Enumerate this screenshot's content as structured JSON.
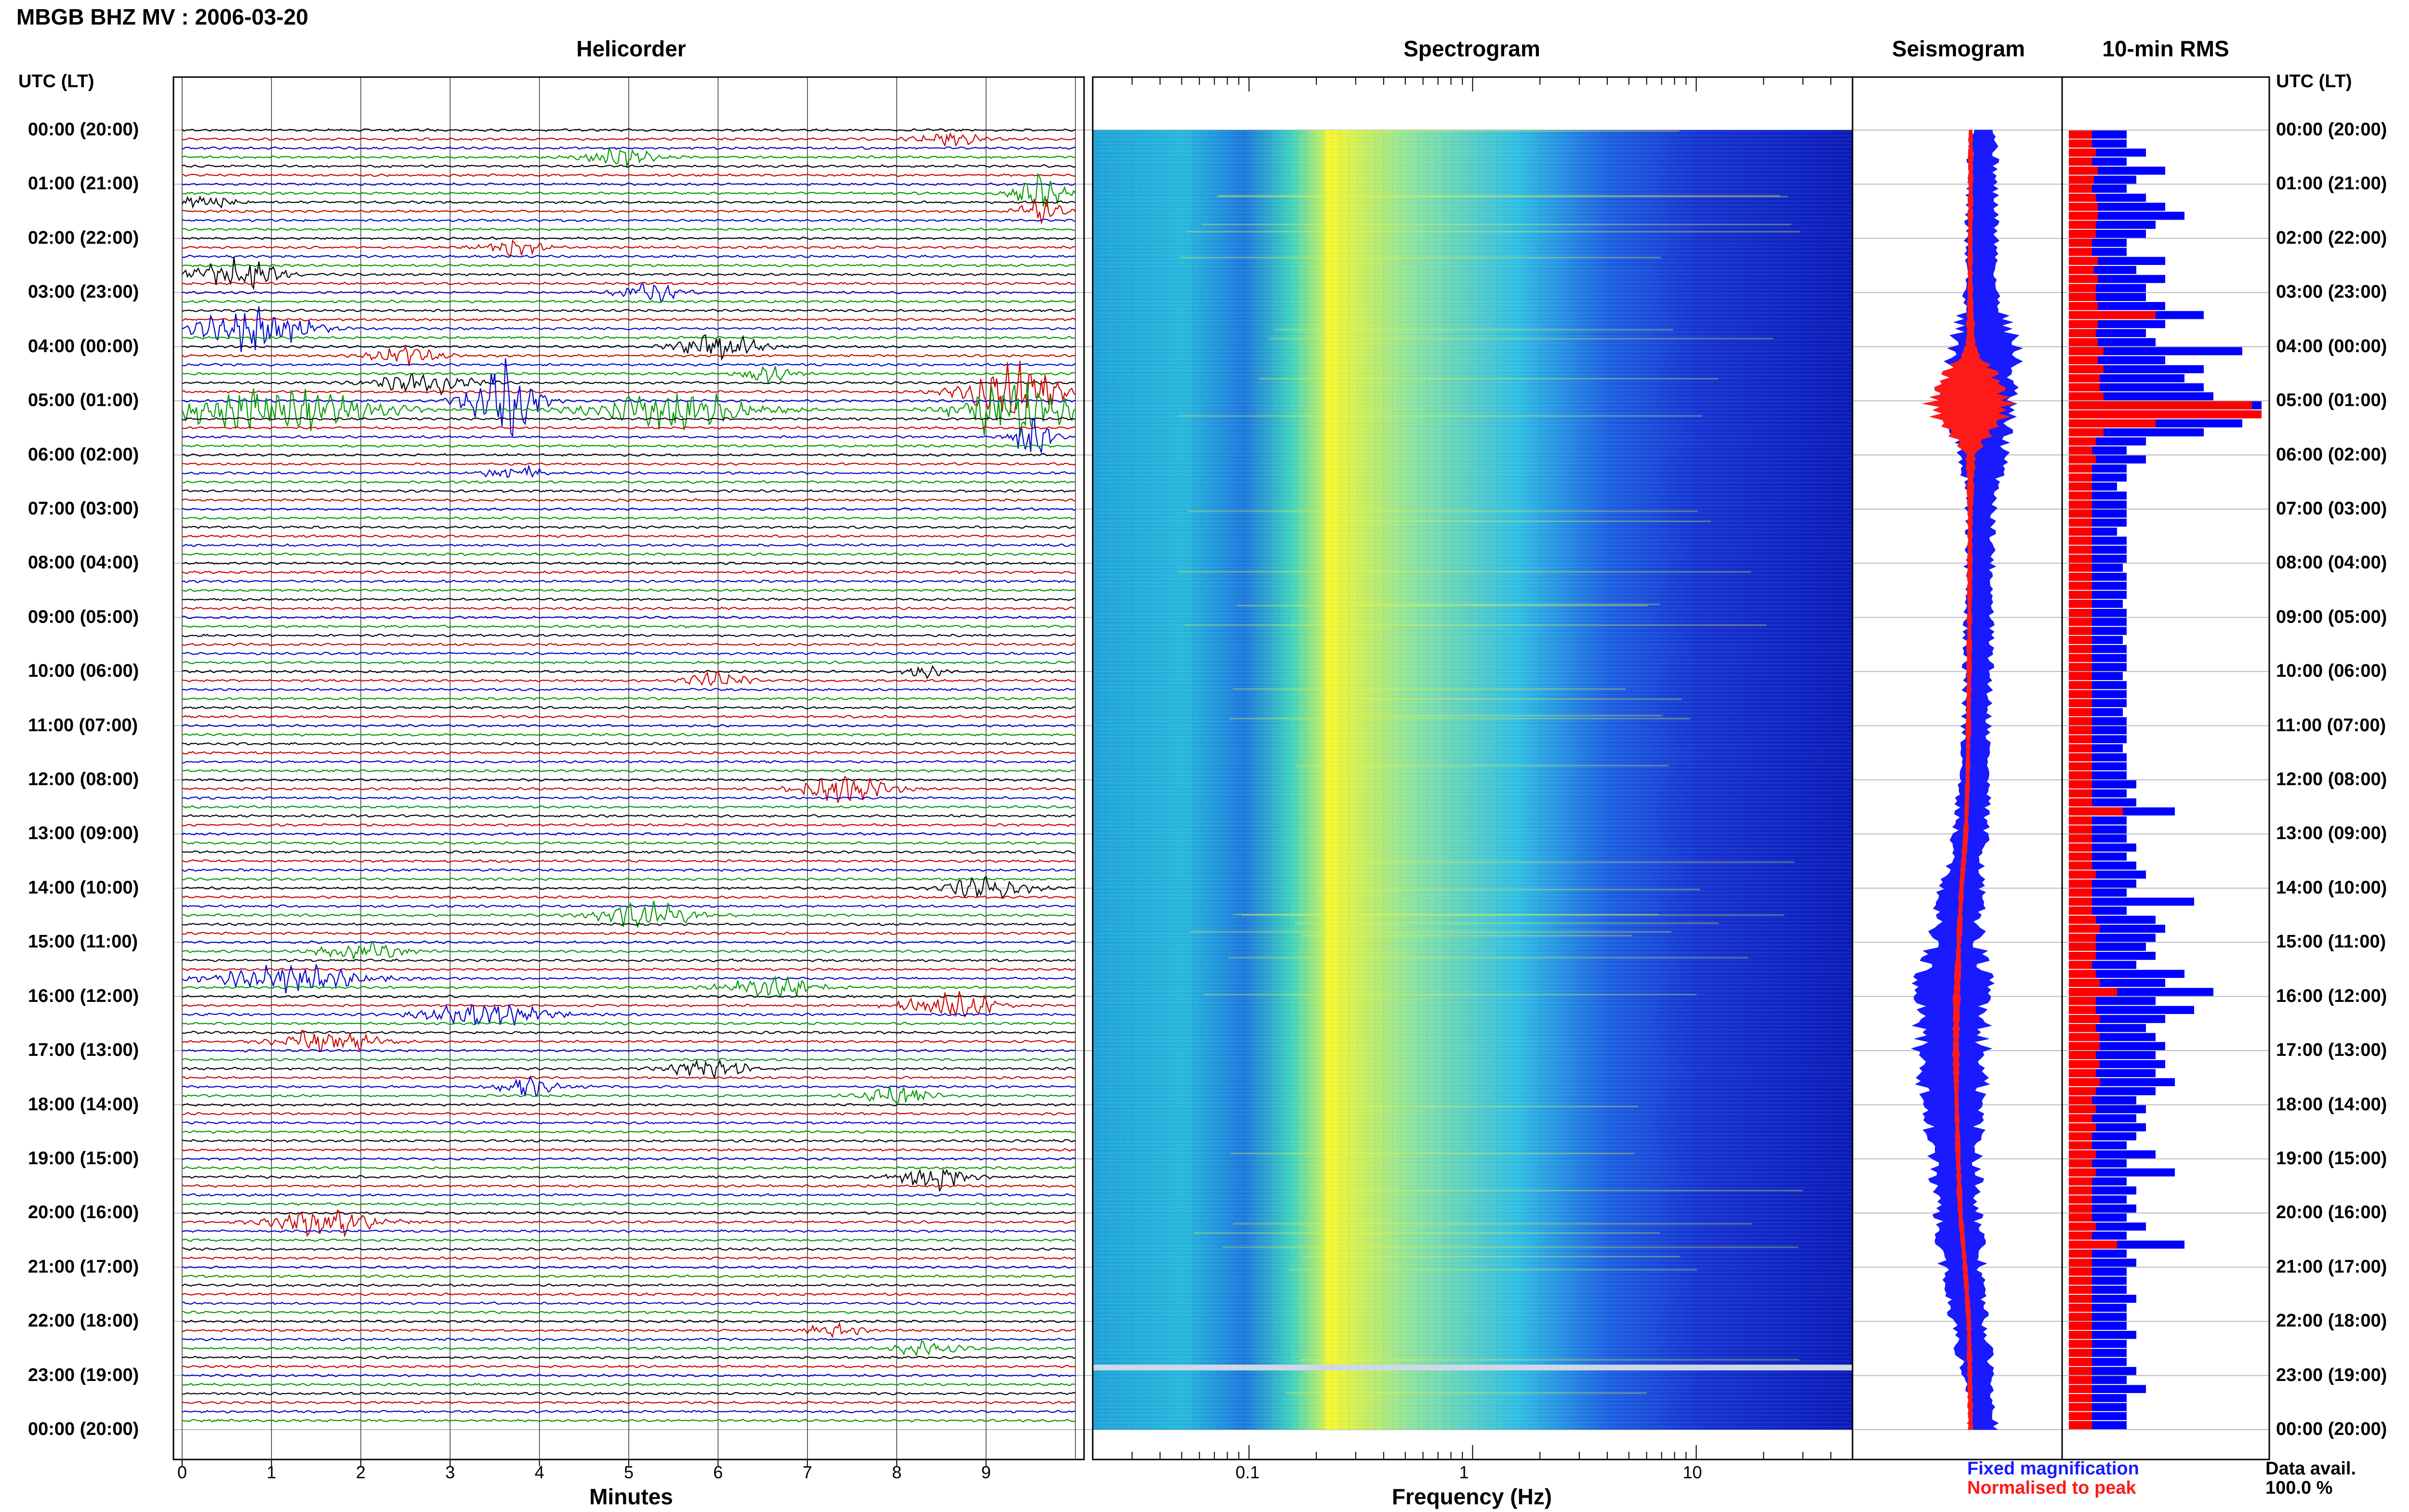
{
  "title": "MBGB BHZ MV : 2006-03-20",
  "panels": {
    "helicorder": "Helicorder",
    "spectrogram": "Spectrogram",
    "seismogram": "Seismogram",
    "rms": "10-min RMS"
  },
  "time_axis_header": "UTC (LT)",
  "time_labels": [
    "00:00 (20:00)",
    "01:00 (21:00)",
    "02:00 (22:00)",
    "03:00 (23:00)",
    "04:00 (00:00)",
    "05:00 (01:00)",
    "06:00 (02:00)",
    "07:00 (03:00)",
    "08:00 (04:00)",
    "09:00 (05:00)",
    "10:00 (06:00)",
    "11:00 (07:00)",
    "12:00 (08:00)",
    "13:00 (09:00)",
    "14:00 (10:00)",
    "15:00 (11:00)",
    "16:00 (12:00)",
    "17:00 (13:00)",
    "18:00 (14:00)",
    "19:00 (15:00)",
    "20:00 (16:00)",
    "21:00 (17:00)",
    "22:00 (18:00)",
    "23:00 (19:00)",
    "00:00 (20:00)"
  ],
  "helicorder_axis": {
    "label": "Minutes",
    "ticks": [
      "0",
      "1",
      "2",
      "3",
      "4",
      "5",
      "6",
      "7",
      "8",
      "9"
    ]
  },
  "spectrogram_axis": {
    "label": "Frequency (Hz)",
    "ticks": [
      "0.1",
      "1",
      "10"
    ]
  },
  "legend": {
    "fixed": "Fixed magnification",
    "normalised": "Normalised to peak"
  },
  "data_avail": {
    "label": "Data avail.",
    "value": "100.0 %"
  },
  "colors": {
    "trace_cycle": [
      "#000000",
      "#cc0000",
      "#0000cc",
      "#009900"
    ],
    "seismo_fixed": "#1a1aff",
    "seismo_normalised": "#ff1a1a",
    "rms_fixed": "#0000ff",
    "rms_normalised": "#ff0000"
  },
  "chart_data": [
    {
      "type": "line",
      "name": "helicorder",
      "xlabel": "Minutes",
      "xlim": [
        0,
        10
      ],
      "rows_per_hour": 6,
      "rows": 144,
      "events": [
        {
          "row": 1,
          "minute": 8.6,
          "amp": 0.5,
          "len": 1.0
        },
        {
          "row": 3,
          "minute": 4.9,
          "amp": 0.8,
          "len": 1.0
        },
        {
          "row": 7,
          "minute": 9.6,
          "amp": 1.6,
          "len": 0.7
        },
        {
          "row": 8,
          "minute": 0.3,
          "amp": 0.8,
          "len": 0.7
        },
        {
          "row": 9,
          "minute": 9.6,
          "amp": 1.0,
          "len": 0.7
        },
        {
          "row": 13,
          "minute": 3.7,
          "amp": 0.7,
          "len": 0.9
        },
        {
          "row": 16,
          "minute": 0.6,
          "amp": 1.6,
          "len": 1.2
        },
        {
          "row": 18,
          "minute": 5.2,
          "amp": 0.8,
          "len": 1.0
        },
        {
          "row": 22,
          "minute": 0.8,
          "amp": 2.0,
          "len": 1.6
        },
        {
          "row": 24,
          "minute": 6.0,
          "amp": 1.2,
          "len": 1.2
        },
        {
          "row": 25,
          "minute": 2.5,
          "amp": 0.8,
          "len": 1.0
        },
        {
          "row": 27,
          "minute": 6.5,
          "amp": 0.8,
          "len": 0.8
        },
        {
          "row": 28,
          "minute": 2.7,
          "amp": 1.0,
          "len": 1.4
        },
        {
          "row": 29,
          "minute": 9.3,
          "amp": 2.5,
          "len": 1.4
        },
        {
          "row": 30,
          "minute": 3.6,
          "amp": 3.5,
          "len": 1.0
        },
        {
          "row": 31,
          "minute": 1.0,
          "amp": 2.0,
          "len": 3.0
        },
        {
          "row": 31,
          "minute": 5.5,
          "amp": 1.6,
          "len": 2.5
        },
        {
          "row": 31,
          "minute": 9.3,
          "amp": 2.8,
          "len": 1.6
        },
        {
          "row": 34,
          "minute": 9.5,
          "amp": 2.0,
          "len": 0.6
        },
        {
          "row": 38,
          "minute": 3.7,
          "amp": 0.8,
          "len": 0.8
        },
        {
          "row": 61,
          "minute": 6.0,
          "amp": 0.8,
          "len": 0.8
        },
        {
          "row": 60,
          "minute": 8.3,
          "amp": 0.5,
          "len": 0.6
        },
        {
          "row": 73,
          "minute": 7.4,
          "amp": 1.2,
          "len": 1.4
        },
        {
          "row": 84,
          "minute": 9.0,
          "amp": 1.0,
          "len": 1.2
        },
        {
          "row": 87,
          "minute": 5.2,
          "amp": 1.2,
          "len": 1.4
        },
        {
          "row": 91,
          "minute": 2.0,
          "amp": 0.8,
          "len": 1.2
        },
        {
          "row": 94,
          "minute": 1.2,
          "amp": 1.2,
          "len": 2.2
        },
        {
          "row": 95,
          "minute": 6.6,
          "amp": 1.0,
          "len": 1.4
        },
        {
          "row": 97,
          "minute": 8.6,
          "amp": 1.2,
          "len": 1.4
        },
        {
          "row": 98,
          "minute": 3.4,
          "amp": 1.0,
          "len": 1.8
        },
        {
          "row": 101,
          "minute": 1.6,
          "amp": 1.2,
          "len": 1.4
        },
        {
          "row": 104,
          "minute": 5.9,
          "amp": 0.8,
          "len": 1.2
        },
        {
          "row": 106,
          "minute": 3.9,
          "amp": 0.8,
          "len": 1.0
        },
        {
          "row": 107,
          "minute": 8.0,
          "amp": 0.8,
          "len": 1.0
        },
        {
          "row": 121,
          "minute": 1.6,
          "amp": 1.2,
          "len": 1.6
        },
        {
          "row": 116,
          "minute": 8.4,
          "amp": 1.2,
          "len": 1.0
        },
        {
          "row": 133,
          "minute": 7.3,
          "amp": 0.6,
          "len": 0.8
        },
        {
          "row": 135,
          "minute": 8.3,
          "amp": 0.6,
          "len": 1.0
        }
      ]
    },
    {
      "type": "heatmap",
      "name": "spectrogram",
      "xlabel": "Frequency (Hz)",
      "xscale": "log",
      "xlim": [
        0.02,
        50
      ],
      "xticks": [
        0.1,
        1,
        10
      ],
      "rows": 144,
      "peak_frequency_hz": 0.25,
      "colormap": [
        "#1530d0",
        "#1d7fe0",
        "#2ec9e0",
        "#8fe28a",
        "#ffff33"
      ]
    },
    {
      "type": "line",
      "name": "seismogram",
      "series": [
        {
          "name": "Fixed magnification",
          "color": "#1a1aff",
          "offset": [
            0.45,
            0.42,
            0.4,
            0.38,
            0.5,
            0.3,
            0.45,
            0.38,
            0.35,
            0.32,
            0.3,
            0.25,
            0.2,
            0.1,
            -0.15,
            -0.3,
            -0.4,
            -0.42,
            -0.38,
            -0.32,
            -0.25,
            -0.12,
            0.05,
            0.3,
            0.45
          ],
          "halfwidth": [
            0.12,
            0.12,
            0.14,
            0.14,
            0.3,
            0.3,
            0.2,
            0.12,
            0.12,
            0.12,
            0.12,
            0.12,
            0.13,
            0.14,
            0.18,
            0.22,
            0.34,
            0.3,
            0.26,
            0.22,
            0.2,
            0.18,
            0.15,
            0.14,
            0.12
          ]
        },
        {
          "name": "Normalised to peak",
          "color": "#ff1a1a",
          "offset": [
            0.1,
            0.1,
            0.09,
            0.09,
            0.1,
            0.07,
            0.1,
            0.09,
            0.08,
            0.07,
            0.06,
            0.04,
            0.02,
            -0.03,
            -0.15,
            -0.22,
            -0.28,
            -0.3,
            -0.28,
            -0.24,
            -0.18,
            -0.05,
            0.05,
            0.08,
            0.1
          ],
          "halfwidth": [
            0.02,
            0.02,
            0.02,
            0.02,
            0.04,
            0.4,
            0.04,
            0.02,
            0.02,
            0.02,
            0.02,
            0.02,
            0.02,
            0.02,
            0.02,
            0.02,
            0.03,
            0.03,
            0.02,
            0.02,
            0.02,
            0.02,
            0.02,
            0.02,
            0.02
          ]
        }
      ]
    },
    {
      "type": "bar",
      "name": "rms",
      "orientation": "horizontal",
      "categories_per_hour": 6,
      "series": [
        {
          "name": "Fixed magnification",
          "color": "#0000ff",
          "values": [
            0.3,
            0.3,
            0.4,
            0.3,
            0.5,
            0.35,
            0.3,
            0.4,
            0.5,
            0.6,
            0.45,
            0.4,
            0.3,
            0.3,
            0.5,
            0.35,
            0.5,
            0.4,
            0.4,
            0.5,
            0.7,
            0.5,
            0.4,
            0.45,
            0.9,
            0.5,
            0.7,
            0.6,
            0.7,
            0.75,
            1.0,
            0.95,
            0.9,
            0.7,
            0.4,
            0.3,
            0.4,
            0.3,
            0.3,
            0.25,
            0.3,
            0.3,
            0.3,
            0.3,
            0.25,
            0.3,
            0.3,
            0.3,
            0.28,
            0.3,
            0.3,
            0.3,
            0.28,
            0.3,
            0.3,
            0.3,
            0.28,
            0.3,
            0.3,
            0.3,
            0.28,
            0.3,
            0.3,
            0.3,
            0.28,
            0.3,
            0.3,
            0.3,
            0.28,
            0.3,
            0.3,
            0.3,
            0.35,
            0.3,
            0.35,
            0.55,
            0.3,
            0.3,
            0.3,
            0.35,
            0.3,
            0.35,
            0.4,
            0.35,
            0.3,
            0.65,
            0.3,
            0.45,
            0.5,
            0.45,
            0.4,
            0.45,
            0.35,
            0.6,
            0.5,
            0.75,
            0.45,
            0.65,
            0.5,
            0.4,
            0.45,
            0.5,
            0.45,
            0.5,
            0.45,
            0.55,
            0.45,
            0.35,
            0.4,
            0.35,
            0.4,
            0.35,
            0.3,
            0.45,
            0.3,
            0.55,
            0.3,
            0.35,
            0.3,
            0.35,
            0.3,
            0.4,
            0.3,
            0.6,
            0.3,
            0.35,
            0.3,
            0.3,
            0.3,
            0.35,
            0.3,
            0.3,
            0.3,
            0.35,
            0.3,
            0.3,
            0.3,
            0.35,
            0.3,
            0.4,
            0.3,
            0.3,
            0.3,
            0.3
          ]
        },
        {
          "name": "Normalised to peak",
          "color": "#ff0000",
          "values": [
            0.12,
            0.12,
            0.14,
            0.12,
            0.15,
            0.13,
            0.12,
            0.14,
            0.15,
            0.15,
            0.14,
            0.14,
            0.12,
            0.12,
            0.15,
            0.13,
            0.15,
            0.14,
            0.14,
            0.15,
            0.45,
            0.15,
            0.14,
            0.15,
            0.18,
            0.15,
            0.18,
            0.16,
            0.16,
            0.18,
            0.95,
            1.0,
            0.45,
            0.18,
            0.14,
            0.12,
            0.14,
            0.12,
            0.12,
            0.12,
            0.12,
            0.12,
            0.12,
            0.12,
            0.12,
            0.12,
            0.12,
            0.12,
            0.12,
            0.12,
            0.12,
            0.12,
            0.12,
            0.12,
            0.12,
            0.12,
            0.12,
            0.12,
            0.12,
            0.12,
            0.12,
            0.12,
            0.12,
            0.12,
            0.12,
            0.12,
            0.12,
            0.12,
            0.12,
            0.12,
            0.12,
            0.12,
            0.12,
            0.12,
            0.12,
            0.28,
            0.12,
            0.12,
            0.12,
            0.12,
            0.12,
            0.12,
            0.14,
            0.12,
            0.12,
            0.12,
            0.12,
            0.14,
            0.16,
            0.14,
            0.14,
            0.14,
            0.12,
            0.14,
            0.16,
            0.25,
            0.14,
            0.14,
            0.16,
            0.14,
            0.16,
            0.16,
            0.14,
            0.16,
            0.14,
            0.16,
            0.14,
            0.12,
            0.14,
            0.12,
            0.14,
            0.12,
            0.12,
            0.14,
            0.12,
            0.14,
            0.12,
            0.12,
            0.12,
            0.12,
            0.12,
            0.14,
            0.12,
            0.25,
            0.12,
            0.12,
            0.12,
            0.12,
            0.12,
            0.12,
            0.12,
            0.12,
            0.12,
            0.12,
            0.12,
            0.12,
            0.12,
            0.12,
            0.12,
            0.12,
            0.12,
            0.12,
            0.12,
            0.12
          ]
        }
      ]
    }
  ]
}
